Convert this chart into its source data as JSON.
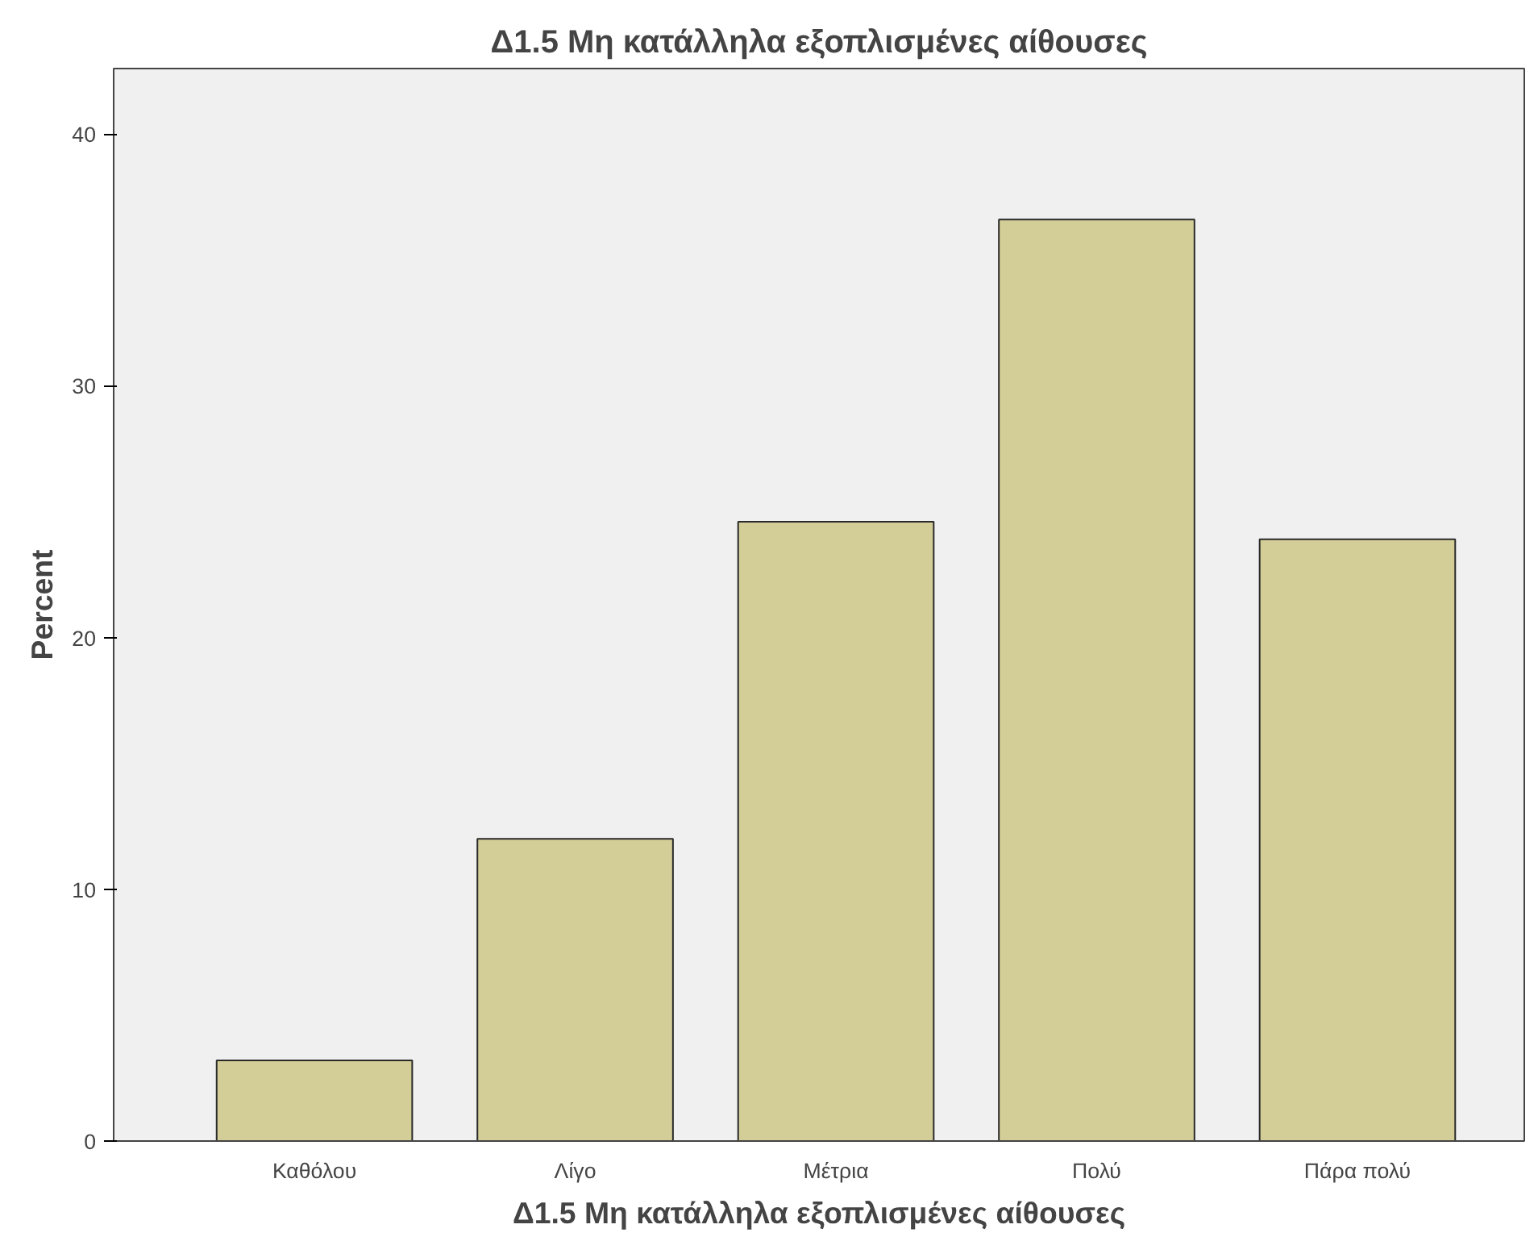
{
  "chart_data": {
    "type": "bar",
    "title": "Δ1.5 Μη κατάλληλα εξοπλισμένες αίθουσες",
    "xlabel": "Δ1.5 Μη κατάλληλα εξοπλισμένες αίθουσες",
    "ylabel": "Percent",
    "categories": [
      "Καθόλου",
      "Λίγο",
      "Μέτρια",
      "Πολύ",
      "Πάρα πολύ"
    ],
    "values": [
      3.2,
      12.0,
      24.6,
      36.6,
      23.9
    ],
    "color": "#d3ce97",
    "ylim": [
      0,
      42.6
    ],
    "yticks": [
      0,
      10,
      20,
      30,
      40
    ],
    "grid": false
  }
}
